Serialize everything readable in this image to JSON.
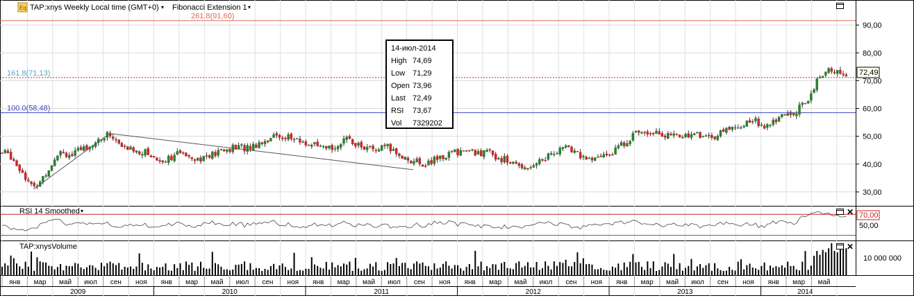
{
  "header": {
    "symbol_label": "TAP:xnys Weekly Local time (GMT+0)",
    "indicator_label": "Fibonacci Extension 1",
    "badge": "Eq"
  },
  "fibonacci": [
    {
      "label": "261.8(91,60)",
      "value": 91.6,
      "color": "#e06a5a"
    },
    {
      "label": "161.8(71,13)",
      "value": 71.13,
      "color": "#5aa0c8"
    },
    {
      "label": "100.0(58,48)",
      "value": 58.48,
      "color": "#3c46c8"
    }
  ],
  "last_price_label": "72,49",
  "tooltip": {
    "date": "14-июл-2014",
    "rows": [
      {
        "k": "High",
        "v": "74,69"
      },
      {
        "k": "Low",
        "v": "71,29"
      },
      {
        "k": "Open",
        "v": "73,96"
      },
      {
        "k": "Last",
        "v": "72,49"
      },
      {
        "k": "RSI",
        "v": "73,67"
      },
      {
        "k": "Vol",
        "v": "7329202"
      }
    ]
  },
  "rsi_panel": {
    "title": "RSI 14 Smoothed",
    "level_label": "70,00",
    "tick_label": "50,00"
  },
  "volume_panel": {
    "title": "TAP:xnysVolume",
    "tick_label": "10 000 000"
  },
  "x_axis": {
    "months": [
      "янв",
      "мар",
      "май",
      "июл",
      "сен",
      "ноя",
      "янв",
      "мар",
      "май",
      "июл",
      "сен",
      "ноя",
      "янв",
      "мар",
      "май",
      "июл",
      "сен",
      "ноя",
      "янв",
      "мар",
      "май",
      "июл",
      "сен",
      "ноя",
      "янв",
      "мар",
      "май",
      "июл",
      "сен",
      "ноя",
      "янв",
      "мар",
      "май"
    ],
    "years": [
      "2009",
      "2010",
      "2011",
      "2012",
      "2013",
      "2014"
    ]
  },
  "chart_data": {
    "type": "candlestick",
    "title": "TAP:xnys Weekly",
    "y_ticks": [
      "90,00",
      "80,00",
      "70,00",
      "60,00",
      "50,00",
      "40,00",
      "30,00"
    ],
    "ylim": [
      25,
      99
    ],
    "grid": true,
    "x_range": [
      "2009-01",
      "2014-07"
    ],
    "price_path": [
      {
        "date": "2009-01",
        "value": 44
      },
      {
        "date": "2009-02",
        "value": 38
      },
      {
        "date": "2009-03",
        "value": 31
      },
      {
        "date": "2009-04",
        "value": 37
      },
      {
        "date": "2009-05",
        "value": 45
      },
      {
        "date": "2009-06",
        "value": 43
      },
      {
        "date": "2009-07",
        "value": 46
      },
      {
        "date": "2009-08",
        "value": 48
      },
      {
        "date": "2009-09",
        "value": 51
      },
      {
        "date": "2009-10",
        "value": 46
      },
      {
        "date": "2009-11",
        "value": 45
      },
      {
        "date": "2009-12",
        "value": 44
      },
      {
        "date": "2010-01",
        "value": 41
      },
      {
        "date": "2010-02",
        "value": 43
      },
      {
        "date": "2010-03",
        "value": 44
      },
      {
        "date": "2010-04",
        "value": 42
      },
      {
        "date": "2010-05",
        "value": 43
      },
      {
        "date": "2010-06",
        "value": 45
      },
      {
        "date": "2010-07",
        "value": 46
      },
      {
        "date": "2010-08",
        "value": 46
      },
      {
        "date": "2010-09",
        "value": 48
      },
      {
        "date": "2010-10",
        "value": 50
      },
      {
        "date": "2010-11",
        "value": 50
      },
      {
        "date": "2010-12",
        "value": 48
      },
      {
        "date": "2011-01",
        "value": 47
      },
      {
        "date": "2011-02",
        "value": 45
      },
      {
        "date": "2011-03",
        "value": 47
      },
      {
        "date": "2011-04",
        "value": 49
      },
      {
        "date": "2011-05",
        "value": 46
      },
      {
        "date": "2011-06",
        "value": 45
      },
      {
        "date": "2011-07",
        "value": 46
      },
      {
        "date": "2011-08",
        "value": 43
      },
      {
        "date": "2011-09",
        "value": 41
      },
      {
        "date": "2011-10",
        "value": 40
      },
      {
        "date": "2011-11",
        "value": 42
      },
      {
        "date": "2011-12",
        "value": 44
      },
      {
        "date": "2012-01",
        "value": 45
      },
      {
        "date": "2012-02",
        "value": 44
      },
      {
        "date": "2012-03",
        "value": 44
      },
      {
        "date": "2012-04",
        "value": 42
      },
      {
        "date": "2012-05",
        "value": 40
      },
      {
        "date": "2012-06",
        "value": 39
      },
      {
        "date": "2012-07",
        "value": 41
      },
      {
        "date": "2012-08",
        "value": 44
      },
      {
        "date": "2012-09",
        "value": 46
      },
      {
        "date": "2012-10",
        "value": 44
      },
      {
        "date": "2012-11",
        "value": 41
      },
      {
        "date": "2012-12",
        "value": 43
      },
      {
        "date": "2013-01",
        "value": 45
      },
      {
        "date": "2013-02",
        "value": 49
      },
      {
        "date": "2013-03",
        "value": 52
      },
      {
        "date": "2013-04",
        "value": 52
      },
      {
        "date": "2013-05",
        "value": 50
      },
      {
        "date": "2013-06",
        "value": 50
      },
      {
        "date": "2013-07",
        "value": 51
      },
      {
        "date": "2013-08",
        "value": 50
      },
      {
        "date": "2013-09",
        "value": 50
      },
      {
        "date": "2013-10",
        "value": 53
      },
      {
        "date": "2013-11",
        "value": 54
      },
      {
        "date": "2013-12",
        "value": 56
      },
      {
        "date": "2014-01",
        "value": 53
      },
      {
        "date": "2014-02",
        "value": 57
      },
      {
        "date": "2014-03",
        "value": 58
      },
      {
        "date": "2014-04",
        "value": 62
      },
      {
        "date": "2014-05",
        "value": 70
      },
      {
        "date": "2014-06",
        "value": 74
      },
      {
        "date": "2014-07",
        "value": 72.49
      }
    ],
    "fib_trendline": [
      {
        "date": "2009-03",
        "value": 31
      },
      {
        "date": "2009-09",
        "value": 51
      },
      {
        "date": "2011-09",
        "value": 38
      }
    ],
    "last": 72.49
  }
}
